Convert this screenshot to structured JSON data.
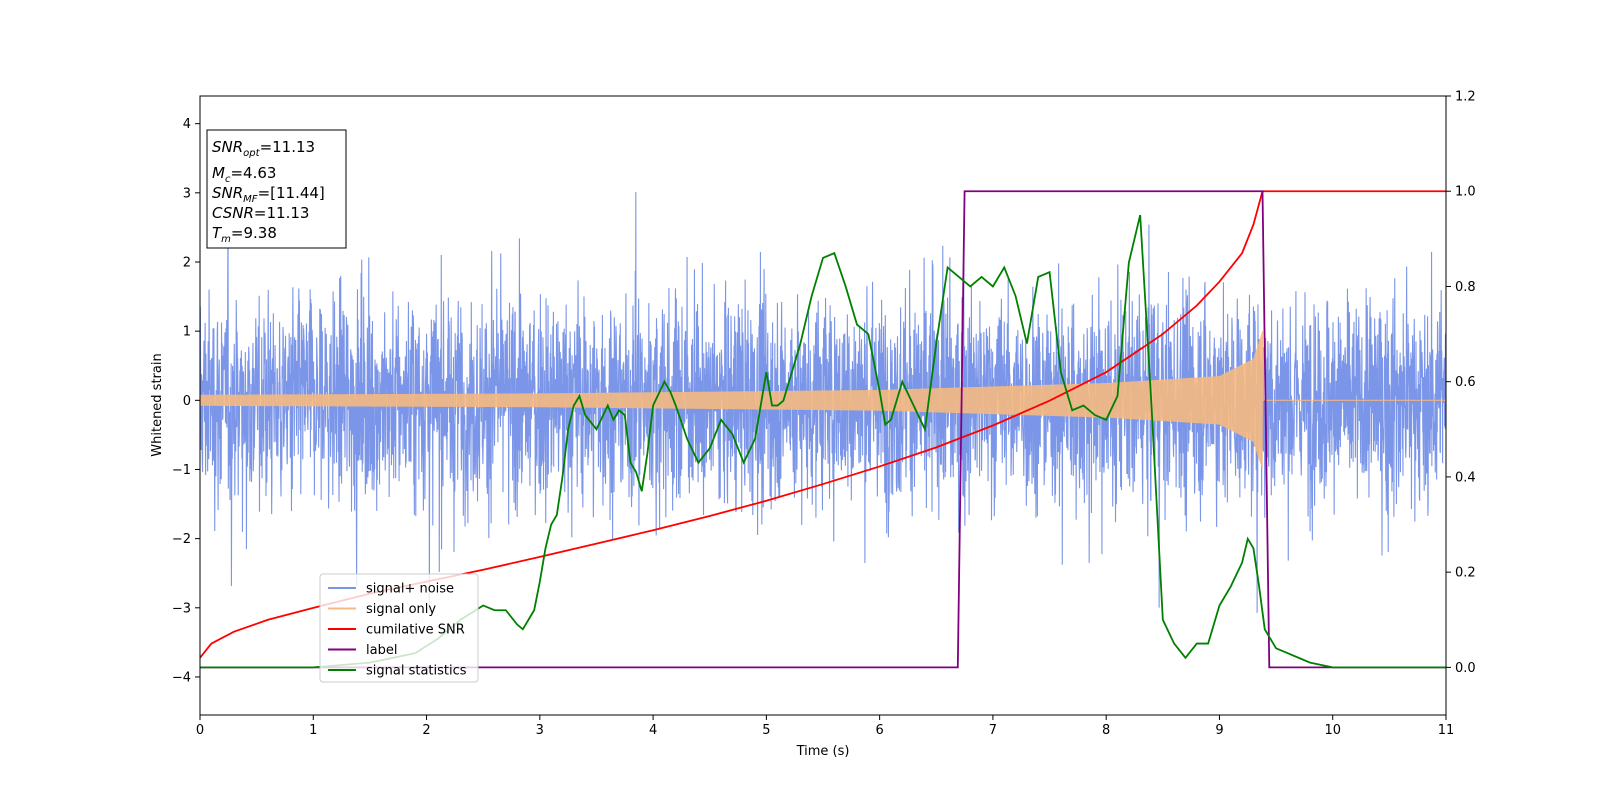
{
  "chart_data": {
    "type": "line",
    "xlabel": "Time (s)",
    "ylabel": "Whitened strain",
    "xlim": [
      0,
      11
    ],
    "ylim_left": [
      -4.55,
      4.4
    ],
    "ylim_right": [
      -0.1,
      1.2
    ],
    "xticks": [
      "0",
      "1",
      "2",
      "3",
      "4",
      "5",
      "6",
      "7",
      "8",
      "9",
      "10",
      "11"
    ],
    "yticks_left": [
      "−4",
      "−3",
      "−2",
      "−1",
      "0",
      "1",
      "2",
      "3",
      "4"
    ],
    "yticks_right": [
      "0.0",
      "0.2",
      "0.4",
      "0.6",
      "0.8",
      "1.0",
      "1.2"
    ],
    "legend_position": "lower-left",
    "annotation": {
      "snr_opt": {
        "base": "SNR",
        "sub": "opt",
        "value": "=11.13"
      },
      "mc": {
        "base": "M",
        "sub": "c",
        "value": "=4.63"
      },
      "snr_mf": {
        "base": "SNR",
        "sub": "MF",
        "value": "=[11.44]"
      },
      "csnr": {
        "base": "CSNR",
        "value": "=11.13"
      },
      "tm": {
        "base": "T",
        "sub": "m",
        "value": "=9.38"
      }
    },
    "series": [
      {
        "name": "signal+ noise",
        "axis": "left",
        "color": "#7b96e8",
        "kind": "noise",
        "amplitude_range": [
          -4.15,
          4.0
        ]
      },
      {
        "name": "signal only",
        "axis": "left",
        "color": "#f5b880",
        "kind": "chirp",
        "x_end": 9.38,
        "envelope": [
          [
            0,
            0.08
          ],
          [
            3,
            0.1
          ],
          [
            6,
            0.15
          ],
          [
            8,
            0.25
          ],
          [
            9,
            0.35
          ],
          [
            9.3,
            0.6
          ],
          [
            9.38,
            1.0
          ]
        ]
      },
      {
        "name": "cumilative SNR",
        "axis": "right",
        "color": "#ff0000",
        "x": [
          0,
          0.1,
          0.3,
          0.6,
          1,
          1.5,
          2,
          2.5,
          3,
          3.5,
          4,
          4.5,
          5,
          5.5,
          6,
          6.5,
          7,
          7.5,
          8,
          8.5,
          8.8,
          9,
          9.2,
          9.3,
          9.38,
          11
        ],
        "y": [
          0.02,
          0.05,
          0.075,
          0.1,
          0.125,
          0.155,
          0.18,
          0.205,
          0.232,
          0.26,
          0.288,
          0.318,
          0.35,
          0.385,
          0.422,
          0.462,
          0.508,
          0.56,
          0.62,
          0.7,
          0.76,
          0.81,
          0.87,
          0.93,
          1.0,
          1.0
        ]
      },
      {
        "name": "label",
        "axis": "right",
        "color": "#800080",
        "x": [
          0,
          6.69,
          6.75,
          9.38,
          9.44,
          11
        ],
        "y": [
          0,
          0,
          1,
          1,
          0,
          0
        ]
      },
      {
        "name": "signal statistics",
        "axis": "right",
        "color": "#008000",
        "x": [
          0,
          1,
          1.5,
          1.9,
          2.1,
          2.3,
          2.5,
          2.6,
          2.7,
          2.8,
          2.85,
          2.9,
          2.95,
          3.0,
          3.05,
          3.1,
          3.15,
          3.2,
          3.25,
          3.3,
          3.35,
          3.4,
          3.5,
          3.6,
          3.65,
          3.7,
          3.75,
          3.8,
          3.85,
          3.9,
          3.95,
          4.0,
          4.1,
          4.15,
          4.2,
          4.3,
          4.4,
          4.5,
          4.6,
          4.7,
          4.8,
          4.9,
          5.0,
          5.05,
          5.1,
          5.15,
          5.2,
          5.3,
          5.4,
          5.5,
          5.6,
          5.7,
          5.8,
          5.9,
          6.0,
          6.05,
          6.1,
          6.2,
          6.3,
          6.4,
          6.5,
          6.6,
          6.7,
          6.8,
          6.9,
          7.0,
          7.1,
          7.2,
          7.3,
          7.4,
          7.5,
          7.6,
          7.7,
          7.8,
          7.9,
          8.0,
          8.1,
          8.2,
          8.3,
          8.4,
          8.5,
          8.6,
          8.7,
          8.8,
          8.9,
          9.0,
          9.1,
          9.2,
          9.25,
          9.3,
          9.35,
          9.4,
          9.5,
          9.6,
          9.7,
          9.8,
          10.0,
          10.5,
          11
        ],
        "y": [
          0.0,
          0.0,
          0.01,
          0.03,
          0.06,
          0.1,
          0.13,
          0.12,
          0.12,
          0.09,
          0.08,
          0.1,
          0.12,
          0.18,
          0.25,
          0.3,
          0.32,
          0.4,
          0.5,
          0.55,
          0.57,
          0.53,
          0.5,
          0.55,
          0.52,
          0.54,
          0.53,
          0.43,
          0.41,
          0.37,
          0.45,
          0.55,
          0.6,
          0.58,
          0.55,
          0.48,
          0.43,
          0.46,
          0.52,
          0.49,
          0.43,
          0.48,
          0.62,
          0.55,
          0.55,
          0.56,
          0.6,
          0.68,
          0.78,
          0.86,
          0.87,
          0.8,
          0.72,
          0.7,
          0.58,
          0.51,
          0.52,
          0.6,
          0.55,
          0.5,
          0.68,
          0.84,
          0.82,
          0.8,
          0.82,
          0.8,
          0.84,
          0.78,
          0.68,
          0.82,
          0.83,
          0.62,
          0.54,
          0.55,
          0.53,
          0.52,
          0.57,
          0.85,
          0.95,
          0.55,
          0.1,
          0.05,
          0.02,
          0.05,
          0.05,
          0.13,
          0.17,
          0.22,
          0.27,
          0.25,
          0.17,
          0.08,
          0.04,
          0.03,
          0.02,
          0.01,
          0.0,
          0.0,
          0.0
        ]
      }
    ]
  }
}
